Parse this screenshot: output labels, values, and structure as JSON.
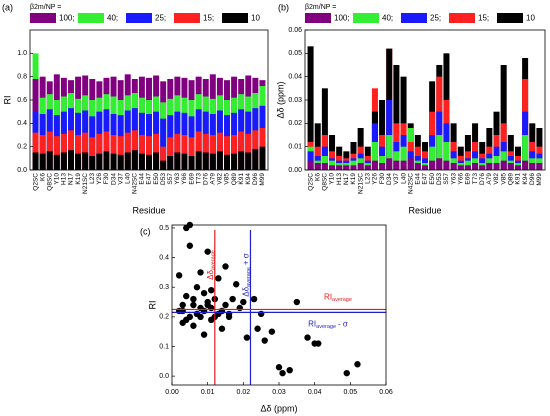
{
  "chart_data": [
    {
      "type": "bar",
      "label": "(a)",
      "ylabel": "RI",
      "xlabel": "Residue",
      "legend_title": "β2m/NP =",
      "categories": [
        "Q2SC",
        "K6",
        "Q8SC",
        "Y10",
        "H13",
        "N17",
        "K19",
        "N21SC",
        "L23",
        "Y26",
        "F30",
        "D34",
        "V37",
        "L40",
        "N42SC",
        "E44",
        "E47",
        "E50",
        "D53",
        "S57",
        "Y63",
        "Y66",
        "E69",
        "T73",
        "D76",
        "A79",
        "V82",
        "V85",
        "Q89",
        "K91",
        "K94",
        "D96",
        "M99"
      ],
      "series": [
        {
          "name": "100;",
          "color": "#800080",
          "values": [
            0.78,
            0.8,
            0.76,
            0.82,
            0.79,
            0.77,
            0.8,
            0.81,
            0.78,
            0.76,
            0.79,
            0.8,
            0.77,
            0.82,
            0.78,
            0.8,
            0.79,
            0.81,
            0.76,
            0.78,
            0.8,
            0.79,
            0.77,
            0.8,
            0.78,
            0.82,
            0.79,
            0.77,
            0.8,
            0.78,
            0.81,
            0.79,
            0.77
          ]
        },
        {
          "name": "40;",
          "color": "#33ee33",
          "values": [
            1.0,
            0.62,
            0.65,
            0.6,
            0.63,
            0.66,
            0.61,
            0.64,
            0.6,
            0.62,
            0.65,
            0.63,
            0.6,
            0.64,
            0.66,
            0.62,
            0.6,
            0.63,
            0.58,
            0.61,
            0.64,
            0.62,
            0.6,
            0.65,
            0.63,
            0.61,
            0.64,
            0.6,
            0.62,
            0.65,
            0.63,
            0.66,
            0.72
          ]
        },
        {
          "name": "25;",
          "color": "#1a1aff",
          "values": [
            0.5,
            0.48,
            0.52,
            0.47,
            0.5,
            0.53,
            0.49,
            0.51,
            0.46,
            0.5,
            0.52,
            0.48,
            0.47,
            0.51,
            0.53,
            0.49,
            0.48,
            0.5,
            0.44,
            0.47,
            0.5,
            0.49,
            0.46,
            0.52,
            0.5,
            0.48,
            0.51,
            0.47,
            0.49,
            0.52,
            0.5,
            0.53,
            0.55
          ]
        },
        {
          "name": "15;",
          "color": "#ff2020",
          "values": [
            0.32,
            0.3,
            0.33,
            0.29,
            0.31,
            0.34,
            0.3,
            0.32,
            0.28,
            0.31,
            0.33,
            0.3,
            0.29,
            0.32,
            0.34,
            0.3,
            0.29,
            0.31,
            0.2,
            0.28,
            0.31,
            0.3,
            0.28,
            0.33,
            0.31,
            0.3,
            0.32,
            0.29,
            0.3,
            0.33,
            0.31,
            0.34,
            0.36
          ]
        },
        {
          "name": "10",
          "color": "#000000",
          "values": [
            0.15,
            0.14,
            0.16,
            0.13,
            0.15,
            0.17,
            0.14,
            0.15,
            0.12,
            0.14,
            0.16,
            0.14,
            0.13,
            0.15,
            0.17,
            0.14,
            0.13,
            0.15,
            0.08,
            0.12,
            0.15,
            0.14,
            0.12,
            0.16,
            0.15,
            0.14,
            0.16,
            0.13,
            0.14,
            0.16,
            0.15,
            0.18,
            0.2
          ]
        }
      ],
      "ylim": [
        0,
        1.2
      ],
      "yticks": [
        {
          "value": 0,
          "label": "0.0"
        },
        0.2,
        0.4,
        0.6,
        0.8,
        {
          "value": 1,
          "label": "1.0"
        }
      ]
    },
    {
      "type": "bar",
      "label": "(b)",
      "ylabel": "Δδ (ppm)",
      "xlabel": "Residue",
      "legend_title": "β2m/NP =",
      "categories": [
        "Q2SC",
        "K6",
        "Q8SC",
        "Y10",
        "H13",
        "N17",
        "K19",
        "N21SC",
        "L23",
        "Y26",
        "F30",
        "D34",
        "V37",
        "L40",
        "N42SC",
        "E44",
        "E47",
        "E50",
        "D53",
        "S57",
        "Y63",
        "Y66",
        "E69",
        "T73",
        "D76",
        "A79",
        "V82",
        "V85",
        "Q89",
        "K91",
        "K94",
        "D96",
        "M99"
      ],
      "series": [
        {
          "name": "100;",
          "color": "#800080",
          "values": [
            0.004,
            0.003,
            0.003,
            0.002,
            0.002,
            0.002,
            0.002,
            0.003,
            0.002,
            0.004,
            0.003,
            0.005,
            0.004,
            0.004,
            0.005,
            0.003,
            0.002,
            0.004,
            0.005,
            0.004,
            0.003,
            0.002,
            0.002,
            0.003,
            0.002,
            0.003,
            0.003,
            0.004,
            0.003,
            0.002,
            0.004,
            0.003,
            0.003
          ]
        },
        {
          "name": "40;",
          "color": "#33ee33",
          "values": [
            0.01,
            0.004,
            0.006,
            0.004,
            0.003,
            0.003,
            0.004,
            0.005,
            0.003,
            0.012,
            0.006,
            0.015,
            0.008,
            0.01,
            0.018,
            0.004,
            0.003,
            0.01,
            0.015,
            0.012,
            0.005,
            0.003,
            0.004,
            0.005,
            0.003,
            0.005,
            0.006,
            0.008,
            0.004,
            0.003,
            0.015,
            0.005,
            0.005
          ]
        },
        {
          "name": "25;",
          "color": "#1a1aff",
          "values": [
            0.008,
            0.006,
            0.01,
            0.005,
            0.004,
            0.004,
            0.005,
            0.007,
            0.004,
            0.02,
            0.01,
            0.03,
            0.012,
            0.015,
            0.008,
            0.006,
            0.005,
            0.015,
            0.025,
            0.02,
            0.008,
            0.004,
            0.005,
            0.008,
            0.005,
            0.007,
            0.01,
            0.012,
            0.006,
            0.004,
            0.025,
            0.008,
            0.007
          ]
        },
        {
          "name": "15;",
          "color": "#ff2020",
          "values": [
            0.012,
            0.01,
            0.015,
            0.008,
            0.006,
            0.005,
            0.007,
            0.01,
            0.006,
            0.035,
            0.015,
            0.052,
            0.02,
            0.02,
            0.012,
            0.01,
            0.008,
            0.025,
            0.04,
            0.03,
            0.012,
            0.006,
            0.008,
            0.012,
            0.007,
            0.01,
            0.015,
            0.02,
            0.008,
            0.006,
            0.039,
            0.012,
            0.01
          ]
        },
        {
          "name": "10",
          "color": "#000000",
          "values": [
            0.053,
            0.02,
            0.035,
            0.015,
            0.01,
            0.008,
            0.012,
            0.018,
            0.01,
            0.025,
            0.03,
            0.052,
            0.045,
            0.04,
            0.02,
            0.015,
            0.012,
            0.038,
            0.045,
            0.05,
            0.02,
            0.01,
            0.015,
            0.02,
            0.012,
            0.018,
            0.025,
            0.045,
            0.015,
            0.01,
            0.048,
            0.02,
            0.018
          ]
        }
      ],
      "ylim": [
        0,
        0.06
      ],
      "yticks": [
        {
          "value": 0,
          "label": "0.00"
        },
        {
          "value": 0.01,
          "label": "0.01"
        },
        {
          "value": 0.02,
          "label": "0.02"
        },
        {
          "value": 0.03,
          "label": "0.03"
        },
        {
          "value": 0.04,
          "label": "0.04"
        },
        {
          "value": 0.05,
          "label": "0.05"
        },
        {
          "value": 0.06,
          "label": "0.06"
        }
      ]
    },
    {
      "type": "scatter",
      "label": "(c)",
      "ylabel": "RI",
      "xlabel": "Δδ (ppm)",
      "color": "#000000",
      "x": [
        0.002,
        0.003,
        0.004,
        0.005,
        0.006,
        0.007,
        0.008,
        0.009,
        0.01,
        0.011,
        0.012,
        0.013,
        0.014,
        0.015,
        0.016,
        0.017,
        0.018,
        0.019,
        0.02,
        0.003,
        0.004,
        0.005,
        0.006,
        0.007,
        0.008,
        0.009,
        0.01,
        0.011,
        0.013,
        0.014,
        0.002,
        0.005,
        0.008,
        0.01,
        0.012,
        0.006,
        0.009,
        0.004,
        0.007,
        0.015,
        0.021,
        0.023,
        0.024,
        0.025,
        0.026,
        0.028,
        0.03,
        0.031,
        0.033,
        0.035,
        0.038,
        0.04,
        0.041,
        0.049,
        0.052,
        0.003,
        0.011,
        0.016
      ],
      "y": [
        0.22,
        0.24,
        0.5,
        0.2,
        0.26,
        0.21,
        0.23,
        0.28,
        0.25,
        0.19,
        0.2,
        0.33,
        0.22,
        0.24,
        0.21,
        0.26,
        0.31,
        0.23,
        0.25,
        0.18,
        0.27,
        0.51,
        0.17,
        0.3,
        0.2,
        0.22,
        0.24,
        0.29,
        0.21,
        0.16,
        0.34,
        0.44,
        0.35,
        0.42,
        0.26,
        0.24,
        0.14,
        0.19,
        0.21,
        0.37,
        0.13,
        0.26,
        0.16,
        0.21,
        0.12,
        0.15,
        0.03,
        0.01,
        0.02,
        0.25,
        0.13,
        0.11,
        0.11,
        0.01,
        0.04,
        0.22,
        0.23,
        0.2
      ],
      "xlim": [
        0,
        0.06
      ],
      "xticks": [
        {
          "value": 0,
          "label": "0.00"
        },
        {
          "value": 0.01,
          "label": "0.01"
        },
        {
          "value": 0.02,
          "label": "0.02"
        },
        {
          "value": 0.03,
          "label": "0.03"
        },
        {
          "value": 0.04,
          "label": "0.04"
        },
        {
          "value": 0.05,
          "label": "0.05"
        },
        {
          "value": 0.06,
          "label": "0.06"
        }
      ],
      "ylim": [
        -0.03,
        0.51
      ],
      "yticks": [
        {
          "value": 0,
          "label": "0.0"
        },
        0.1,
        0.2,
        0.3,
        0.4,
        0.5
      ],
      "ref_lines": [
        {
          "axis": "x",
          "value": 0.012,
          "color": "#e41a1c",
          "text": "Δδ",
          "sub": "average"
        },
        {
          "axis": "x",
          "value": 0.022,
          "color": "#1f1fd0",
          "text": "Δδ",
          "sub": "average",
          "suffix": "+ σ"
        },
        {
          "axis": "y",
          "value": 0.225,
          "color": "#e41a1c",
          "text": "RI",
          "sub": "average"
        },
        {
          "axis": "y",
          "value": 0.215,
          "color": "#1f1fd0",
          "text": "RI",
          "sub": "average",
          "suffix": "- σ"
        }
      ]
    }
  ]
}
